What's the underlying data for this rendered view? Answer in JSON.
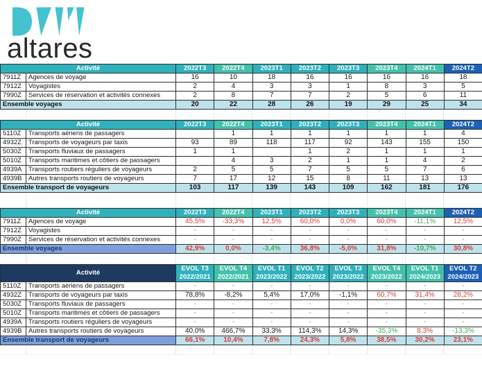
{
  "brand": {
    "logo_text_top": "DATA",
    "logo_text_bottom": "altares"
  },
  "palette": {
    "logo_teal": "#44C2CF",
    "header_teal": "#2FB1BC",
    "header_teal_alt": "#43C1AC",
    "header_dark_blue": "#1B61B7",
    "header_navy": "#1F3A60",
    "total_light_blue": "#BEE2EC",
    "total_medium_blue": "#7DA0DC",
    "value_red": "#D63E38",
    "value_green": "#3EAE54",
    "dash_gray": "#8c8c8c"
  },
  "tables": [
    {
      "name": "voyages-counts",
      "activity_header": "Activité",
      "header_style": "teal",
      "columns": [
        {
          "l1": "2022T3",
          "s": "t"
        },
        {
          "l1": "2022T4",
          "s": "a"
        },
        {
          "l1": "2023T1",
          "s": "t"
        },
        {
          "l1": "2023T2",
          "s": "t"
        },
        {
          "l1": "2023T3",
          "s": "t"
        },
        {
          "l1": "2023T4",
          "s": "a"
        },
        {
          "l1": "2024T1",
          "s": "a"
        },
        {
          "l1": "2024T2",
          "s": "b"
        }
      ],
      "rows": [
        {
          "code": "7911Z",
          "label": "Agences de voyage",
          "cells": [
            [
              "16",
              "k"
            ],
            [
              "10",
              "k"
            ],
            [
              "18",
              "k"
            ],
            [
              "16",
              "k"
            ],
            [
              "16",
              "k"
            ],
            [
              "16",
              "k"
            ],
            [
              "16",
              "k"
            ],
            [
              "18",
              "k"
            ]
          ]
        },
        {
          "code": "7912Z",
          "label": "Voyagistes",
          "cells": [
            [
              "2",
              "k"
            ],
            [
              "4",
              "k"
            ],
            [
              "3",
              "k"
            ],
            [
              "3",
              "k"
            ],
            [
              "1",
              "k"
            ],
            [
              "8",
              "k"
            ],
            [
              "3",
              "k"
            ],
            [
              "5",
              "k"
            ]
          ]
        },
        {
          "code": "7990Z",
          "label": "Services de réservation et activités connexes",
          "cells": [
            [
              "2",
              "k"
            ],
            [
              "8",
              "k"
            ],
            [
              "7",
              "k"
            ],
            [
              "7",
              "k"
            ],
            [
              "2",
              "k"
            ],
            [
              "5",
              "k"
            ],
            [
              "6",
              "k"
            ],
            [
              "11",
              "k"
            ]
          ]
        }
      ],
      "total": {
        "label": "Ensemble voyages",
        "label_style": "light",
        "cells": [
          [
            "20",
            "k"
          ],
          [
            "22",
            "k"
          ],
          [
            "28",
            "k"
          ],
          [
            "26",
            "k"
          ],
          [
            "19",
            "k"
          ],
          [
            "29",
            "k"
          ],
          [
            "25",
            "k"
          ],
          [
            "34",
            "k"
          ]
        ]
      }
    },
    {
      "name": "transport-counts",
      "activity_header": "Activité",
      "header_style": "teal",
      "columns": [
        {
          "l1": "2022T3",
          "s": "t"
        },
        {
          "l1": "2022T4",
          "s": "a"
        },
        {
          "l1": "2023T1",
          "s": "t"
        },
        {
          "l1": "2023T2",
          "s": "t"
        },
        {
          "l1": "2023T3",
          "s": "t"
        },
        {
          "l1": "2023T4",
          "s": "a"
        },
        {
          "l1": "2024T1",
          "s": "a"
        },
        {
          "l1": "2024T2",
          "s": "b"
        }
      ],
      "rows": [
        {
          "code": "5110Z",
          "label": "Transports aériens de passagers",
          "cells": [
            [
              "",
              "k"
            ],
            [
              "1",
              "k"
            ],
            [
              "1",
              "k"
            ],
            [
              "1",
              "k"
            ],
            [
              "1",
              "k"
            ],
            [
              "1",
              "k"
            ],
            [
              "1",
              "k"
            ],
            [
              "4",
              "k"
            ]
          ]
        },
        {
          "code": "4932Z",
          "label": "Transports de voyageurs par taxis",
          "cells": [
            [
              "93",
              "k"
            ],
            [
              "89",
              "k"
            ],
            [
              "118",
              "k"
            ],
            [
              "117",
              "k"
            ],
            [
              "92",
              "k"
            ],
            [
              "143",
              "k"
            ],
            [
              "155",
              "k"
            ],
            [
              "150",
              "k"
            ]
          ]
        },
        {
          "code": "5030Z",
          "label": "Transports fluviaux de passagers",
          "cells": [
            [
              "1",
              "k"
            ],
            [
              "1",
              "k"
            ],
            [
              "",
              "k"
            ],
            [
              "1",
              "k"
            ],
            [
              "2",
              "k"
            ],
            [
              "1",
              "k"
            ],
            [
              "1",
              "k"
            ],
            [
              "1",
              "k"
            ]
          ]
        },
        {
          "code": "5010Z",
          "label": "Transports maritimes et côtiers de passagers",
          "cells": [
            [
              "",
              "k"
            ],
            [
              "4",
              "k"
            ],
            [
              "3",
              "k"
            ],
            [
              "2",
              "k"
            ],
            [
              "1",
              "k"
            ],
            [
              "1",
              "k"
            ],
            [
              "4",
              "k"
            ],
            [
              "2",
              "k"
            ]
          ]
        },
        {
          "code": "4939A",
          "label": "Transports routiers réguliers de voyageurs",
          "cells": [
            [
              "2",
              "k"
            ],
            [
              "5",
              "k"
            ],
            [
              "5",
              "k"
            ],
            [
              "7",
              "k"
            ],
            [
              "5",
              "k"
            ],
            [
              "5",
              "k"
            ],
            [
              "7",
              "k"
            ],
            [
              "6",
              "k"
            ]
          ]
        },
        {
          "code": "4939B",
          "label": "Autres transports routiers de voyageurs",
          "cells": [
            [
              "7",
              "k"
            ],
            [
              "17",
              "k"
            ],
            [
              "12",
              "k"
            ],
            [
              "15",
              "k"
            ],
            [
              "8",
              "k"
            ],
            [
              "11",
              "k"
            ],
            [
              "13",
              "k"
            ],
            [
              "13",
              "k"
            ]
          ]
        }
      ],
      "total": {
        "label": "Ensemble transport de voyageurs",
        "label_style": "light",
        "cells": [
          [
            "103",
            "k"
          ],
          [
            "117",
            "k"
          ],
          [
            "139",
            "k"
          ],
          [
            "143",
            "k"
          ],
          [
            "109",
            "k"
          ],
          [
            "162",
            "k"
          ],
          [
            "181",
            "k"
          ],
          [
            "176",
            "k"
          ]
        ]
      }
    },
    {
      "name": "voyages-evolution",
      "activity_header": "Activité",
      "header_style": "teal",
      "columns": [
        {
          "l1": "2022T3",
          "s": "t"
        },
        {
          "l1": "2022T4",
          "s": "a"
        },
        {
          "l1": "2023T1",
          "s": "t"
        },
        {
          "l1": "2023T2",
          "s": "t"
        },
        {
          "l1": "2023T3",
          "s": "t"
        },
        {
          "l1": "2023T4",
          "s": "a"
        },
        {
          "l1": "2024T1",
          "s": "a"
        },
        {
          "l1": "2024T2",
          "s": "b"
        }
      ],
      "rows": [
        {
          "code": "7911Z",
          "label": "Agences de voyage",
          "cells": [
            [
              "45,5%",
              "r"
            ],
            [
              "-33,3%",
              "r"
            ],
            [
              "12,5%",
              "r"
            ],
            [
              "60,0%",
              "r"
            ],
            [
              "0,0%",
              "r"
            ],
            [
              "60,0%",
              "r"
            ],
            [
              "-11,1%",
              "g"
            ],
            [
              "12,5%",
              "r"
            ]
          ]
        },
        {
          "code": "7912Z",
          "label": "Voyagistes",
          "cells": [
            [
              "-",
              "d"
            ],
            [
              "-",
              "d"
            ],
            [
              "-",
              "d"
            ],
            [
              "-",
              "d"
            ],
            [
              "-",
              "d"
            ],
            [
              "-",
              "d"
            ],
            [
              "-",
              "d"
            ],
            [
              "-",
              "d"
            ]
          ]
        },
        {
          "code": "7990Z",
          "label": "Services de réservation et activités connexes",
          "cells": [
            [
              "-",
              "d"
            ],
            [
              "-",
              "d"
            ],
            [
              "-",
              "d"
            ],
            [
              "-",
              "d"
            ],
            [
              "-",
              "d"
            ],
            [
              "-",
              "d"
            ],
            [
              "-",
              "d"
            ],
            [
              "-",
              "d"
            ]
          ]
        }
      ],
      "total": {
        "label": "Ensemble voyages",
        "label_style": "medium",
        "cells": [
          [
            "42,9%",
            "r"
          ],
          [
            "0,0%",
            "r"
          ],
          [
            "-3,4%",
            "g"
          ],
          [
            "36,8%",
            "r"
          ],
          [
            "-5,0%",
            "r"
          ],
          [
            "31,8%",
            "r"
          ],
          [
            "-10,7%",
            "g"
          ],
          [
            "30,8%",
            "r"
          ]
        ]
      }
    },
    {
      "name": "transport-evolution",
      "activity_header": "Activité",
      "header_style": "navy",
      "columns": [
        {
          "l1": "EVOL T3",
          "l2": "2022/2021",
          "s": "t"
        },
        {
          "l1": "EVOL T4",
          "l2": "2022/2021",
          "s": "a"
        },
        {
          "l1": "EVOL T1",
          "l2": "2023/2022",
          "s": "t"
        },
        {
          "l1": "EVOL T2",
          "l2": "2023/2022",
          "s": "t"
        },
        {
          "l1": "EVOL T3",
          "l2": "2023/2022",
          "s": "t"
        },
        {
          "l1": "EVOL T4",
          "l2": "2023/2022",
          "s": "a"
        },
        {
          "l1": "EVOL T1",
          "l2": "2024/2023",
          "s": "a"
        },
        {
          "l1": "EVOL T2",
          "l2": "2024/2023",
          "s": "b"
        }
      ],
      "rows": [
        {
          "code": "5110Z",
          "label": "Transports aériens de passagers",
          "cells": [
            [
              "-",
              "d"
            ],
            [
              "-",
              "d"
            ],
            [
              "-",
              "d"
            ],
            [
              "-",
              "d"
            ],
            [
              "-",
              "d"
            ],
            [
              "-",
              "d"
            ],
            [
              "-",
              "d"
            ],
            [
              "-",
              "d"
            ]
          ]
        },
        {
          "code": "4932Z",
          "label": "Transports de voyageurs par taxis",
          "cells": [
            [
              "78,8%",
              "k"
            ],
            [
              "-8,2%",
              "k"
            ],
            [
              "5,4%",
              "k"
            ],
            [
              "17,0%",
              "k"
            ],
            [
              "-1,1%",
              "k"
            ],
            [
              "60,7%",
              "r"
            ],
            [
              "31,4%",
              "r"
            ],
            [
              "28,2%",
              "r"
            ]
          ]
        },
        {
          "code": "5030Z",
          "label": "Transports fluviaux de passagers",
          "cells": [
            [
              "-",
              "d"
            ],
            [
              "-",
              "d"
            ],
            [
              "-",
              "d"
            ],
            [
              "-",
              "d"
            ],
            [
              "-",
              "d"
            ],
            [
              "-",
              "d"
            ],
            [
              "-",
              "d"
            ],
            [
              "-",
              "d"
            ]
          ]
        },
        {
          "code": "5010Z",
          "label": "Transports maritimes et côtiers de passagers",
          "cells": [
            [
              "-",
              "d"
            ],
            [
              "-",
              "d"
            ],
            [
              "-",
              "d"
            ],
            [
              "-",
              "d"
            ],
            [
              "-",
              "d"
            ],
            [
              "-",
              "d"
            ],
            [
              "-",
              "d"
            ],
            [
              "-",
              "d"
            ]
          ]
        },
        {
          "code": "4939A",
          "label": "Transports routiers réguliers de voyageurs",
          "cells": [
            [
              "-",
              "d"
            ],
            [
              "-",
              "d"
            ],
            [
              "-",
              "d"
            ],
            [
              "-",
              "d"
            ],
            [
              "-",
              "d"
            ],
            [
              "-",
              "d"
            ],
            [
              "-",
              "d"
            ],
            [
              "-",
              "d"
            ]
          ]
        },
        {
          "code": "4939B",
          "label": "Autres transports routiers de voyageurs",
          "cells": [
            [
              "40,0%",
              "k"
            ],
            [
              "466,7%",
              "k"
            ],
            [
              "33,3%",
              "k"
            ],
            [
              "114,3%",
              "k"
            ],
            [
              "14,3%",
              "k"
            ],
            [
              "-35,3%",
              "g"
            ],
            [
              "8,3%",
              "r"
            ],
            [
              "-13,3%",
              "g"
            ]
          ]
        }
      ],
      "total": {
        "label": "Ensemble transport de voyageurs",
        "label_style": "medium",
        "cells": [
          [
            "66,1%",
            "r"
          ],
          [
            "10,4%",
            "r"
          ],
          [
            "7,8%",
            "r"
          ],
          [
            "24,3%",
            "r"
          ],
          [
            "5,8%",
            "r"
          ],
          [
            "38,5%",
            "r"
          ],
          [
            "30,2%",
            "r"
          ],
          [
            "23,1%",
            "r"
          ]
        ]
      }
    }
  ]
}
